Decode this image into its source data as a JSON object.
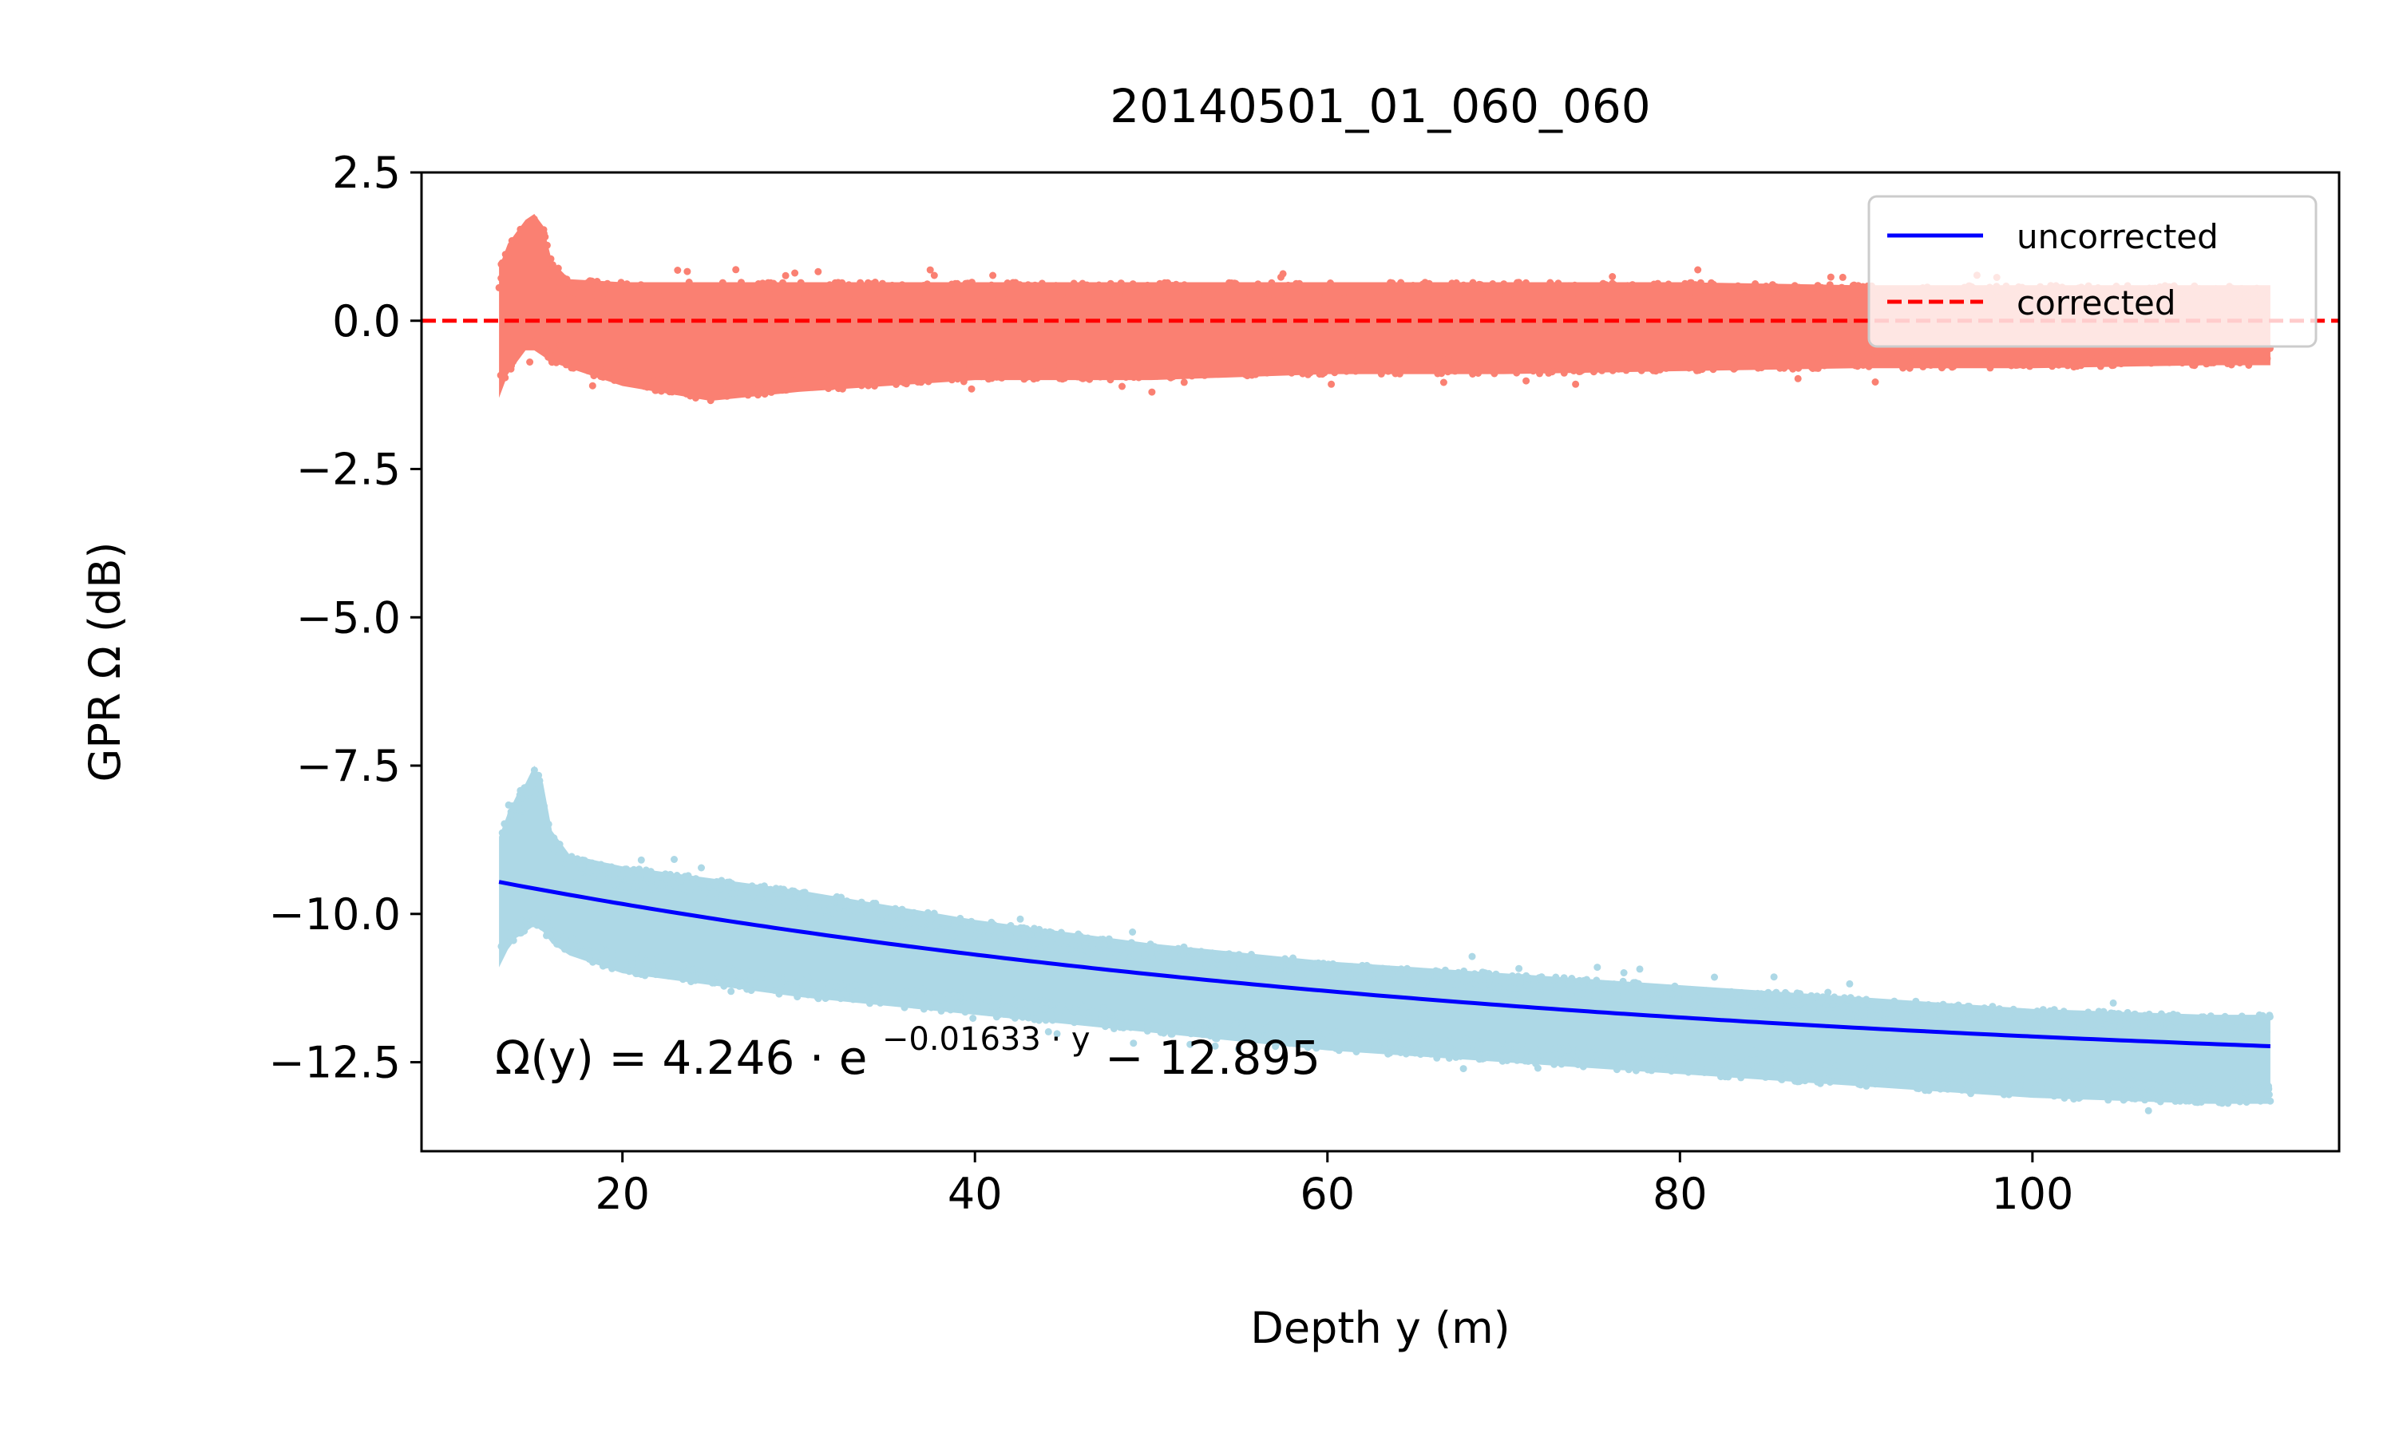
{
  "chart_data": {
    "type": "scatter",
    "title": "20140501_01_060_060",
    "xlabel": "Depth y (m)",
    "ylabel": "GPR Ω (dB)",
    "xlim": [
      8.6,
      117.4
    ],
    "ylim": [
      -14.0,
      2.5
    ],
    "xticks": [
      20,
      40,
      60,
      80,
      100
    ],
    "xtick_labels": [
      "20",
      "40",
      "60",
      "80",
      "100"
    ],
    "yticks": [
      2.5,
      0.0,
      -2.5,
      -5.0,
      -7.5,
      -10.0,
      -12.5
    ],
    "ytick_labels": [
      "2.5",
      "0.0",
      "−2.5",
      "−5.0",
      "−7.5",
      "−10.0",
      "−12.5"
    ],
    "grid": false,
    "legend": {
      "placement": "top-right",
      "entries": [
        "uncorrected",
        "corrected"
      ]
    },
    "annotation": {
      "lhs": "Ω(y) = 4.246 · e",
      "exponent": "−0.01633 · y",
      "rhs": " − 12.895"
    },
    "fit": {
      "a": 4.246,
      "b": 0.01633,
      "c": -12.895,
      "x_start": 13.0,
      "x_end": 113.5
    },
    "series": [
      {
        "name": "uncorrected",
        "kind": "line",
        "style": "solid",
        "color": "#0000ff",
        "x": [
          13,
          20,
          30,
          40,
          50,
          60,
          70,
          80,
          90,
          100,
          110,
          113.5
        ],
        "y": [
          -9.48,
          -9.79,
          -10.27,
          -10.67,
          -11.01,
          -11.3,
          -11.54,
          -11.75,
          -11.92,
          -12.06,
          -12.19,
          -12.23
        ]
      },
      {
        "name": "corrected",
        "kind": "line",
        "style": "dashed",
        "color": "#ff0000",
        "x": [
          8.6,
          117.4
        ],
        "y": [
          0.0,
          0.0
        ]
      },
      {
        "kind": "scatter-band",
        "color": "#fa8072",
        "x": [
          13.0,
          13.5,
          14.0,
          14.5,
          15.0,
          15.5,
          16.0,
          17.0,
          20,
          25,
          30,
          40,
          50,
          60,
          70,
          80,
          90,
          100,
          110,
          113.5
        ],
        "upper": [
          0.9,
          1.3,
          1.5,
          1.7,
          1.8,
          1.6,
          1.0,
          0.7,
          0.65,
          0.65,
          0.65,
          0.65,
          0.65,
          0.65,
          0.65,
          0.65,
          0.6,
          0.6,
          0.6,
          0.6
        ],
        "lower": [
          -1.3,
          -0.9,
          -0.7,
          -0.5,
          -0.5,
          -0.6,
          -0.7,
          -0.8,
          -1.1,
          -1.35,
          -1.2,
          -1.0,
          -1.0,
          -0.9,
          -0.9,
          -0.85,
          -0.8,
          -0.8,
          -0.75,
          -0.75
        ]
      },
      {
        "kind": "scatter-band",
        "color": "#add8e6",
        "x": [
          13.0,
          13.5,
          14.0,
          14.5,
          15.0,
          15.5,
          16.0,
          17.0,
          20,
          30,
          40,
          50,
          60,
          70,
          80,
          90,
          100,
          110,
          113.5
        ],
        "upper": [
          -8.7,
          -8.3,
          -8.0,
          -7.8,
          -7.5,
          -7.8,
          -8.6,
          -9.0,
          -9.2,
          -9.6,
          -10.1,
          -10.5,
          -10.8,
          -11.0,
          -11.2,
          -11.4,
          -11.6,
          -11.7,
          -11.7
        ],
        "lower": [
          -10.9,
          -10.6,
          -10.4,
          -10.3,
          -10.2,
          -10.3,
          -10.5,
          -10.7,
          -11.0,
          -11.4,
          -11.7,
          -12.0,
          -12.3,
          -12.5,
          -12.7,
          -12.9,
          -13.1,
          -13.2,
          -13.2
        ]
      }
    ]
  }
}
